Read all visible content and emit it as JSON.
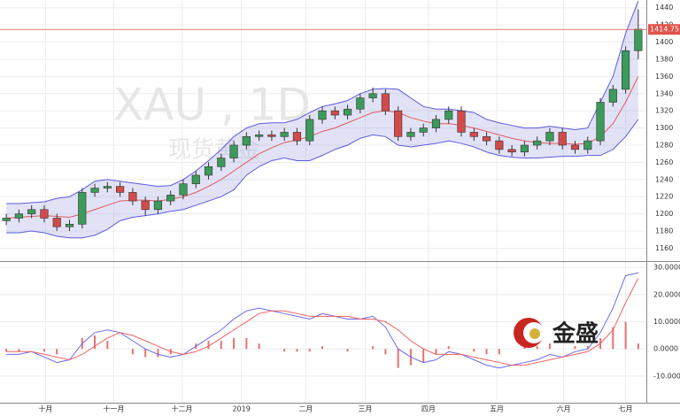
{
  "chart_data": {
    "type": "candlestick",
    "watermark_symbol": "XAU , 1D",
    "watermark_name": "现货黄金",
    "logo": "金盛",
    "up_color": "#3c9a5a",
    "down_color": "#d24b4b",
    "band_fill": "rgba(150,150,225,0.28)",
    "grid": true,
    "xlim": [
      -0.5,
      50.5
    ],
    "xticks": [
      {
        "value": 3.1,
        "label": "十月"
      },
      {
        "value": 8.5,
        "label": "十一月"
      },
      {
        "value": 13.9,
        "label": "十二月"
      },
      {
        "value": 18.6,
        "label": "2019"
      },
      {
        "value": 23.7,
        "label": "二月"
      },
      {
        "value": 28.4,
        "label": "三月"
      },
      {
        "value": 33.4,
        "label": "四月"
      },
      {
        "value": 38.8,
        "label": "五月"
      },
      {
        "value": 44.1,
        "label": "六月"
      },
      {
        "value": 49.0,
        "label": "七月"
      }
    ],
    "ylim": [
      1145,
      1449
    ],
    "yticks": [
      1160,
      1180,
      1200,
      1220,
      1240,
      1260,
      1280,
      1300,
      1320,
      1340,
      1360,
      1380,
      1400,
      1420,
      1440
    ],
    "last_price": 1414.75,
    "last_price_color": "#e0534a",
    "candles": [
      [
        1192,
        1200,
        1187,
        1195
      ],
      [
        1195,
        1205,
        1190,
        1200
      ],
      [
        1200,
        1210,
        1195,
        1205
      ],
      [
        1205,
        1210,
        1190,
        1195
      ],
      [
        1195,
        1200,
        1180,
        1185
      ],
      [
        1185,
        1193,
        1180,
        1188
      ],
      [
        1188,
        1230,
        1183,
        1225
      ],
      [
        1225,
        1235,
        1220,
        1230
      ],
      [
        1230,
        1237,
        1225,
        1232
      ],
      [
        1232,
        1237,
        1220,
        1225
      ],
      [
        1225,
        1230,
        1210,
        1215
      ],
      [
        1215,
        1220,
        1198,
        1205
      ],
      [
        1205,
        1220,
        1200,
        1215
      ],
      [
        1215,
        1227,
        1210,
        1222
      ],
      [
        1222,
        1240,
        1217,
        1235
      ],
      [
        1235,
        1250,
        1230,
        1245
      ],
      [
        1245,
        1260,
        1240,
        1255
      ],
      [
        1255,
        1270,
        1250,
        1265
      ],
      [
        1265,
        1285,
        1260,
        1280
      ],
      [
        1280,
        1295,
        1275,
        1290
      ],
      [
        1290,
        1297,
        1285,
        1292
      ],
      [
        1292,
        1297,
        1285,
        1290
      ],
      [
        1290,
        1300,
        1285,
        1295
      ],
      [
        1295,
        1300,
        1280,
        1285
      ],
      [
        1285,
        1315,
        1280,
        1310
      ],
      [
        1310,
        1325,
        1305,
        1320
      ],
      [
        1320,
        1325,
        1310,
        1315
      ],
      [
        1315,
        1327,
        1310,
        1322
      ],
      [
        1322,
        1340,
        1317,
        1335
      ],
      [
        1335,
        1347,
        1330,
        1340
      ],
      [
        1340,
        1345,
        1315,
        1320
      ],
      [
        1320,
        1325,
        1285,
        1290
      ],
      [
        1290,
        1300,
        1285,
        1295
      ],
      [
        1295,
        1305,
        1290,
        1300
      ],
      [
        1300,
        1315,
        1295,
        1310
      ],
      [
        1310,
        1325,
        1305,
        1320
      ],
      [
        1320,
        1325,
        1290,
        1295
      ],
      [
        1295,
        1300,
        1285,
        1290
      ],
      [
        1290,
        1295,
        1280,
        1285
      ],
      [
        1285,
        1290,
        1270,
        1275
      ],
      [
        1275,
        1280,
        1267,
        1272
      ],
      [
        1272,
        1285,
        1267,
        1280
      ],
      [
        1280,
        1290,
        1275,
        1285
      ],
      [
        1285,
        1300,
        1280,
        1295
      ],
      [
        1295,
        1300,
        1275,
        1280
      ],
      [
        1280,
        1285,
        1270,
        1275
      ],
      [
        1275,
        1290,
        1270,
        1285
      ],
      [
        1285,
        1335,
        1280,
        1330
      ],
      [
        1330,
        1350,
        1325,
        1345
      ],
      [
        1345,
        1395,
        1340,
        1390
      ],
      [
        1390,
        1438,
        1380,
        1415
      ]
    ],
    "upper_band": {
      "color": "#5b5be0",
      "values": [
        1212,
        1212,
        1213,
        1214,
        1218,
        1220,
        1228,
        1238,
        1240,
        1238,
        1236,
        1234,
        1232,
        1233,
        1240,
        1250,
        1262,
        1275,
        1290,
        1300,
        1305,
        1306,
        1306,
        1310,
        1318,
        1325,
        1328,
        1332,
        1340,
        1345,
        1346,
        1345,
        1335,
        1325,
        1322,
        1322,
        1320,
        1318,
        1310,
        1306,
        1303,
        1300,
        1300,
        1302,
        1300,
        1298,
        1300,
        1330,
        1360,
        1410,
        1448
      ]
    },
    "lower_band": {
      "color": "#5b5be0",
      "values": [
        1178,
        1178,
        1180,
        1178,
        1174,
        1172,
        1172,
        1175,
        1182,
        1192,
        1196,
        1198,
        1200,
        1203,
        1205,
        1210,
        1215,
        1220,
        1228,
        1245,
        1255,
        1262,
        1265,
        1262,
        1262,
        1268,
        1275,
        1280,
        1288,
        1292,
        1290,
        1280,
        1278,
        1280,
        1282,
        1285,
        1282,
        1278,
        1272,
        1268,
        1266,
        1265,
        1265,
        1266,
        1267,
        1267,
        1268,
        1268,
        1275,
        1290,
        1310
      ]
    },
    "ma": {
      "color": "#e05a5a",
      "values": [
        1195,
        1196,
        1197,
        1198,
        1197,
        1196,
        1200,
        1205,
        1210,
        1215,
        1216,
        1216,
        1215,
        1217,
        1220,
        1225,
        1232,
        1240,
        1250,
        1260,
        1270,
        1277,
        1283,
        1286,
        1290,
        1296,
        1300,
        1306,
        1312,
        1318,
        1320,
        1318,
        1312,
        1308,
        1305,
        1305,
        1303,
        1300,
        1296,
        1292,
        1288,
        1285,
        1283,
        1282,
        1282,
        1281,
        1282,
        1290,
        1305,
        1330,
        1360
      ]
    },
    "macd_panel": {
      "ylim": [
        -19.8,
        32
      ],
      "yticks": [
        {
          "value": 30,
          "label": "30.0000"
        },
        {
          "value": 20,
          "label": "20.0000"
        },
        {
          "value": 10,
          "label": "10.0000"
        },
        {
          "value": 0,
          "label": "0.0000"
        },
        {
          "value": -10,
          "label": "-10.0000"
        }
      ],
      "macd": {
        "color": "#6b6bf0",
        "values": [
          -2,
          -2,
          -1,
          -3,
          -5,
          -4,
          2,
          6,
          7,
          6,
          3,
          0,
          -2,
          -3,
          -2,
          1,
          4,
          7,
          11,
          14,
          15,
          14,
          13,
          12,
          11,
          13,
          12,
          11,
          11,
          12,
          8,
          0,
          -3,
          -5,
          -4,
          -1,
          -2,
          -4,
          -6,
          -7,
          -6,
          -5,
          -4,
          -2,
          -3,
          -1,
          0,
          6,
          15,
          27,
          28
        ]
      },
      "signal": {
        "color": "#f06060",
        "values": [
          -1,
          -1,
          -1,
          -2,
          -3,
          -4,
          -2,
          1,
          4,
          6,
          5,
          3,
          1,
          -1,
          -2,
          -1,
          1,
          4,
          7,
          10,
          13,
          14,
          14,
          13,
          12,
          12,
          12,
          12,
          11,
          11,
          10,
          7,
          3,
          0,
          -2,
          -2,
          -2,
          -3,
          -4,
          -5,
          -6,
          -6,
          -5,
          -4,
          -3,
          -2,
          -1,
          2,
          7,
          17,
          26
        ]
      },
      "histogram": {
        "color": "#e87070",
        "values": [
          -1,
          -1,
          0,
          -1,
          -2,
          0,
          4,
          5,
          3,
          0,
          -2,
          -3,
          -3,
          -2,
          0,
          2,
          3,
          3,
          4,
          4,
          2,
          0,
          -1,
          -1,
          -1,
          1,
          0,
          -1,
          0,
          1,
          -2,
          -7,
          -6,
          -5,
          -2,
          1,
          0,
          -1,
          -2,
          -2,
          0,
          1,
          1,
          2,
          0,
          1,
          1,
          4,
          8,
          10,
          2
        ]
      }
    }
  }
}
